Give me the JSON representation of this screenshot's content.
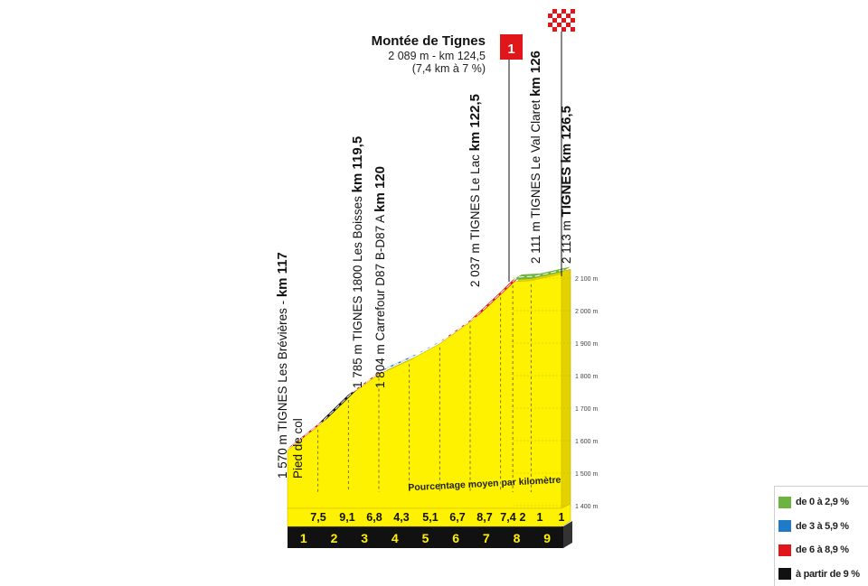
{
  "chart_data": {
    "type": "area",
    "summit": {
      "name": "Montée de Tignes",
      "line2": "2 089 m - km 124,5",
      "line3": "(7,4 km à 7 %)",
      "category": "1"
    },
    "y_axis": {
      "unit_ticks": [
        "1 400 m",
        "1 500 m",
        "1 600 m",
        "1 700 m",
        "1 800 m",
        "1 900 m",
        "2 000 m",
        "2 100 m"
      ],
      "range": [
        1400,
        2100
      ]
    },
    "km_markers": [
      "1",
      "2",
      "3",
      "4",
      "5",
      "6",
      "7",
      "8",
      "9"
    ],
    "slopes_label": "Pourcentage moyen par kilomètre",
    "profile": {
      "x_km": [
        0,
        1,
        2,
        3,
        4,
        5,
        6,
        7,
        7.4,
        8,
        9
      ],
      "elevation_m": [
        1570,
        1645,
        1736,
        1804,
        1847,
        1898,
        1965,
        2052,
        2089,
        2092,
        2113
      ],
      "slope_colors": [
        "#e0161b",
        "#111111",
        "#e0161b",
        "#1f7bc7",
        "#1f7bc7",
        "#e0161b",
        "#e0161b",
        "#e0161b",
        "#6cb33f",
        "#6cb33f"
      ]
    },
    "slopes": [
      {
        "km": "1",
        "value": "7,5"
      },
      {
        "km": "2",
        "value": "9,1"
      },
      {
        "km": "3",
        "value": "6,8"
      },
      {
        "km": "4",
        "value": "4,3"
      },
      {
        "km": "5",
        "value": "5,1"
      },
      {
        "km": "6",
        "value": "6,7"
      },
      {
        "km": "7",
        "value": "8,7"
      },
      {
        "km": "7,4",
        "value": "7,4"
      },
      {
        "km": "8",
        "value": "2"
      },
      {
        "km": "9",
        "value": "1"
      },
      {
        "km": "9b",
        "value": "1"
      }
    ],
    "waypoints": [
      {
        "id": "breviere",
        "lines": [
          [
            {
              "t": "1 570 m TIGNES Les Brévières - ",
              "b": false
            },
            {
              "t": "km 117",
              "b": true
            }
          ],
          [
            {
              "t": "Pied de col",
              "b": false
            }
          ]
        ]
      },
      {
        "id": "boisses",
        "lines": [
          [
            {
              "t": "1 785 m TIGNES 1800 Les Boisses ",
              "b": false
            },
            {
              "t": "km 119,5",
              "b": true
            }
          ],
          [
            {
              "t": "1 804 m Carrefour D87 B-D87 A ",
              "b": false
            },
            {
              "t": "km 120",
              "b": true
            }
          ]
        ]
      },
      {
        "id": "lac",
        "lines": [
          [
            {
              "t": "2 037 m TIGNES Le Lac ",
              "b": false
            },
            {
              "t": "km 122,5",
              "b": true
            }
          ]
        ]
      },
      {
        "id": "valclaret",
        "lines": [
          [
            {
              "t": "2 111 m TIGNES Le Val Claret ",
              "b": false
            },
            {
              "t": "km 126",
              "b": true
            }
          ]
        ]
      },
      {
        "id": "finish",
        "lines": [
          [
            {
              "t": "2 113 m ",
              "b": false
            },
            {
              "t": "TIGNES km 126,5",
              "b": true
            }
          ]
        ]
      }
    ],
    "legend": [
      {
        "label": "de 0 à 2,9 %",
        "color": "#6cb33f"
      },
      {
        "label": "de 3 à 5,9 %",
        "color": "#1f7bc7"
      },
      {
        "label": "de 6 à 8,9 %",
        "color": "#e0161b"
      },
      {
        "label": "à partir de 9 %",
        "color": "#111111"
      }
    ],
    "colors": {
      "fill": "#fff200",
      "side_fill": "#e3d200",
      "base": "#111111",
      "dash": "#555555",
      "category_flag": "#e0161b",
      "finish_flag": "#e0161b"
    }
  }
}
